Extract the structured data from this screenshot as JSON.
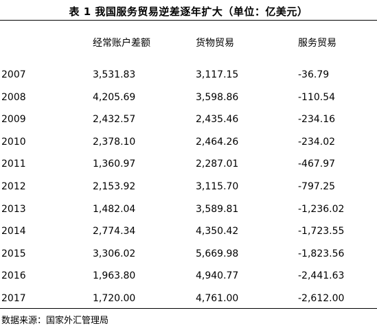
{
  "title": "表 1 我国服务贸易逆差逐年扩大（单位：亿美元）",
  "headers": [
    "经常账户差额",
    "货物贸易",
    "服务贸易"
  ],
  "rows": [
    {
      "year": "2007",
      "current_account": "3,531.83",
      "goods": "3,117.15",
      "services": "-36.79"
    },
    {
      "year": "2008",
      "current_account": "4,205.69",
      "goods": "3,598.86",
      "services": "-110.54"
    },
    {
      "year": "2009",
      "current_account": "2,432.57",
      "goods": "2,435.46",
      "services": "-234.16"
    },
    {
      "year": "2010",
      "current_account": "2,378.10",
      "goods": "2,464.26",
      "services": "-234.02"
    },
    {
      "year": "2011",
      "current_account": "1,360.97",
      "goods": "2,287.01",
      "services": "-467.97"
    },
    {
      "year": "2012",
      "current_account": "2,153.92",
      "goods": "3,115.70",
      "services": "-797.25"
    },
    {
      "year": "2013",
      "current_account": "1,482.04",
      "goods": "3,589.81",
      "services": "-1,236.02"
    },
    {
      "year": "2014",
      "current_account": "2,774.34",
      "goods": "4,350.42",
      "services": "-1,723.55"
    },
    {
      "year": "2015",
      "current_account": "3,306.02",
      "goods": "5,669.98",
      "services": "-1,823.56"
    },
    {
      "year": "2016",
      "current_account": "1,963.80",
      "goods": "4,940.77",
      "services": "-2,441.63"
    },
    {
      "year": "2017",
      "current_account": "1,720.00",
      "goods": "4,761.00",
      "services": "-2,612.00"
    }
  ],
  "source": "数据来源：国家外汇管理局"
}
